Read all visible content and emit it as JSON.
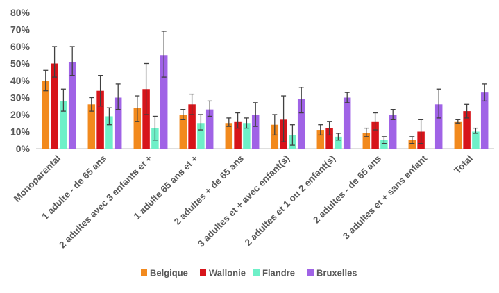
{
  "chart_data": {
    "type": "bar",
    "categories": [
      "Monoparental",
      "1 adulte - de 65 ans",
      "2 adultes avec 3 enfants et +",
      "1 adulte 65 ans et +",
      "2 adultes + de 65 ans",
      "3 adultes et + avec enfant(s)",
      "2 adultes et 1 ou 2 enfant(s)",
      "2 adultes - de 65 ans",
      "3 adultes et + sans enfant",
      "Total"
    ],
    "series": [
      {
        "name": "Belgique",
        "color": "#F28A1E",
        "values": [
          40,
          26,
          24,
          20,
          15,
          14,
          11,
          9,
          5,
          16
        ],
        "error_low": [
          34,
          22,
          16,
          17,
          13,
          8,
          8,
          7,
          3,
          15
        ],
        "error_high": [
          46,
          30,
          31,
          23,
          18,
          20,
          14,
          12,
          7,
          17
        ]
      },
      {
        "name": "Wallonie",
        "color": "#D7141A",
        "values": [
          50,
          34,
          35,
          26,
          16,
          17,
          12,
          16,
          10,
          22
        ],
        "error_low": [
          42,
          25,
          20,
          20,
          12,
          4,
          8,
          11,
          3,
          18
        ],
        "error_high": [
          60,
          43,
          50,
          32,
          21,
          31,
          16,
          21,
          17,
          26
        ]
      },
      {
        "name": "Flandre",
        "color": "#6EF0C8",
        "values": [
          28,
          19,
          12,
          15,
          15,
          8,
          7,
          5,
          0,
          10
        ],
        "error_low": [
          22,
          14,
          5,
          11,
          12,
          2,
          5,
          3,
          0,
          9
        ],
        "error_high": [
          35,
          24,
          19,
          20,
          18,
          14,
          9,
          7,
          0,
          12
        ]
      },
      {
        "name": "Bruxelles",
        "color": "#A063E6",
        "values": [
          51,
          30,
          55,
          23,
          20,
          29,
          30,
          20,
          26,
          33
        ],
        "error_low": [
          43,
          23,
          42,
          19,
          13,
          21,
          27,
          17,
          18,
          28
        ],
        "error_high": [
          60,
          38,
          69,
          28,
          27,
          36,
          33,
          23,
          35,
          38
        ]
      }
    ],
    "y_ticks": [
      "0%",
      "10%",
      "20%",
      "30%",
      "40%",
      "50%",
      "60%",
      "70%",
      "80%"
    ],
    "ylim": [
      0,
      80
    ],
    "legend_position": "bottom",
    "grid": false
  }
}
